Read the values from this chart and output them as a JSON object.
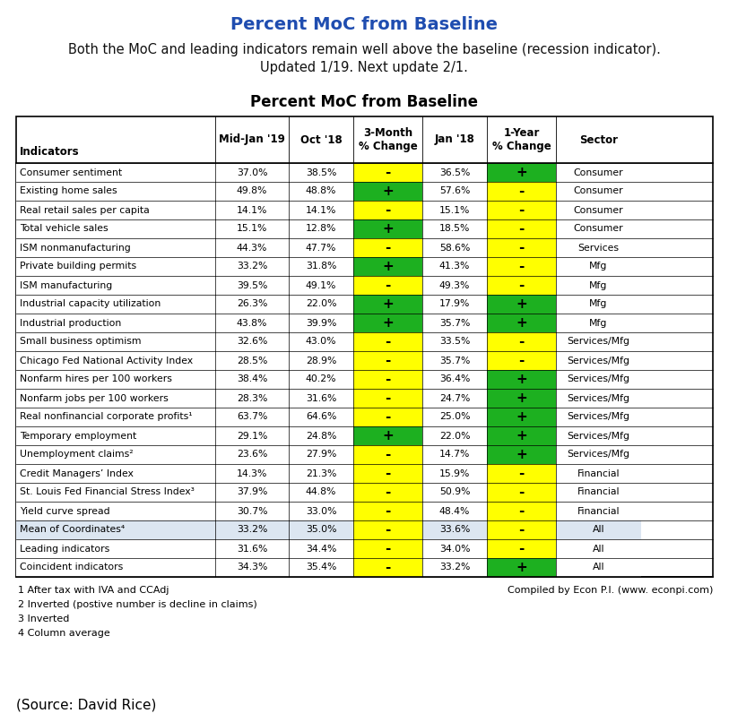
{
  "title_top": "Percent MoC from Baseline",
  "subtitle_line1": "Both the MoC and leading indicators remain well above the baseline (recession indicator).",
  "subtitle_line2": "Updated 1/19. Next update 2/1.",
  "table_title": "Percent MoC from Baseline",
  "col_headers": [
    "Indicators",
    "Mid-Jan '19",
    "Oct '18",
    "3-Month\n% Change",
    "Jan '18",
    "1-Year\n% Change",
    "Sector"
  ],
  "rows": [
    [
      "Consumer sentiment",
      "37.0%",
      "38.5%",
      "-",
      "36.5%",
      "+",
      "Consumer"
    ],
    [
      "Existing home sales",
      "49.8%",
      "48.8%",
      "+",
      "57.6%",
      "-",
      "Consumer"
    ],
    [
      "Real retail sales per capita",
      "14.1%",
      "14.1%",
      "-",
      "15.1%",
      "-",
      "Consumer"
    ],
    [
      "Total vehicle sales",
      "15.1%",
      "12.8%",
      "+",
      "18.5%",
      "-",
      "Consumer"
    ],
    [
      "ISM nonmanufacturing",
      "44.3%",
      "47.7%",
      "-",
      "58.6%",
      "-",
      "Services"
    ],
    [
      "Private building permits",
      "33.2%",
      "31.8%",
      "+",
      "41.3%",
      "-",
      "Mfg"
    ],
    [
      "ISM manufacturing",
      "39.5%",
      "49.1%",
      "-",
      "49.3%",
      "-",
      "Mfg"
    ],
    [
      "Industrial capacity utilization",
      "26.3%",
      "22.0%",
      "+",
      "17.9%",
      "+",
      "Mfg"
    ],
    [
      "Industrial production",
      "43.8%",
      "39.9%",
      "+",
      "35.7%",
      "+",
      "Mfg"
    ],
    [
      "Small business optimism",
      "32.6%",
      "43.0%",
      "-",
      "33.5%",
      "-",
      "Services/Mfg"
    ],
    [
      "Chicago Fed National Activity Index",
      "28.5%",
      "28.9%",
      "-",
      "35.7%",
      "-",
      "Services/Mfg"
    ],
    [
      "Nonfarm hires per 100 workers",
      "38.4%",
      "40.2%",
      "-",
      "36.4%",
      "+",
      "Services/Mfg"
    ],
    [
      "Nonfarm jobs per 100 workers",
      "28.3%",
      "31.6%",
      "-",
      "24.7%",
      "+",
      "Services/Mfg"
    ],
    [
      "Real nonfinancial corporate profits¹",
      "63.7%",
      "64.6%",
      "-",
      "25.0%",
      "+",
      "Services/Mfg"
    ],
    [
      "Temporary employment",
      "29.1%",
      "24.8%",
      "+",
      "22.0%",
      "+",
      "Services/Mfg"
    ],
    [
      "Unemployment claims²",
      "23.6%",
      "27.9%",
      "-",
      "14.7%",
      "+",
      "Services/Mfg"
    ],
    [
      "Credit Managers’ Index",
      "14.3%",
      "21.3%",
      "-",
      "15.9%",
      "-",
      "Financial"
    ],
    [
      "St. Louis Fed Financial Stress Index³",
      "37.9%",
      "44.8%",
      "-",
      "50.9%",
      "-",
      "Financial"
    ],
    [
      "Yield curve spread",
      "30.7%",
      "33.0%",
      "-",
      "48.4%",
      "-",
      "Financial"
    ],
    [
      "Mean of Coordinates⁴",
      "33.2%",
      "35.0%",
      "-",
      "33.6%",
      "-",
      "All"
    ],
    [
      "Leading indicators",
      "31.6%",
      "34.4%",
      "-",
      "34.0%",
      "-",
      "All"
    ],
    [
      "Coincident indicators",
      "34.3%",
      "35.4%",
      "-",
      "33.2%",
      "+",
      "All"
    ]
  ],
  "cell_colors_3month": [
    "yellow",
    "green",
    "yellow",
    "green",
    "yellow",
    "green",
    "yellow",
    "green",
    "green",
    "yellow",
    "yellow",
    "yellow",
    "yellow",
    "yellow",
    "green",
    "yellow",
    "yellow",
    "yellow",
    "yellow",
    "yellow",
    "yellow",
    "yellow"
  ],
  "cell_colors_1year": [
    "green",
    "yellow",
    "yellow",
    "yellow",
    "yellow",
    "yellow",
    "yellow",
    "green",
    "green",
    "yellow",
    "yellow",
    "green",
    "green",
    "green",
    "green",
    "green",
    "yellow",
    "yellow",
    "yellow",
    "yellow",
    "yellow",
    "green"
  ],
  "highlight_rows": [
    19
  ],
  "footnotes": [
    "1 After tax with IVA and CCAdj",
    "2 Inverted (postive number is decline in claims)",
    "3 Inverted",
    "4 Column average"
  ],
  "compiled_by": "Compiled by Econ P.I. (www. econpi.com)",
  "source": "(Source: David Rice)",
  "green_color": "#1db020",
  "yellow_color": "#ffff00",
  "light_blue_color": "#dce6f1",
  "title_color": "#1f4db0"
}
